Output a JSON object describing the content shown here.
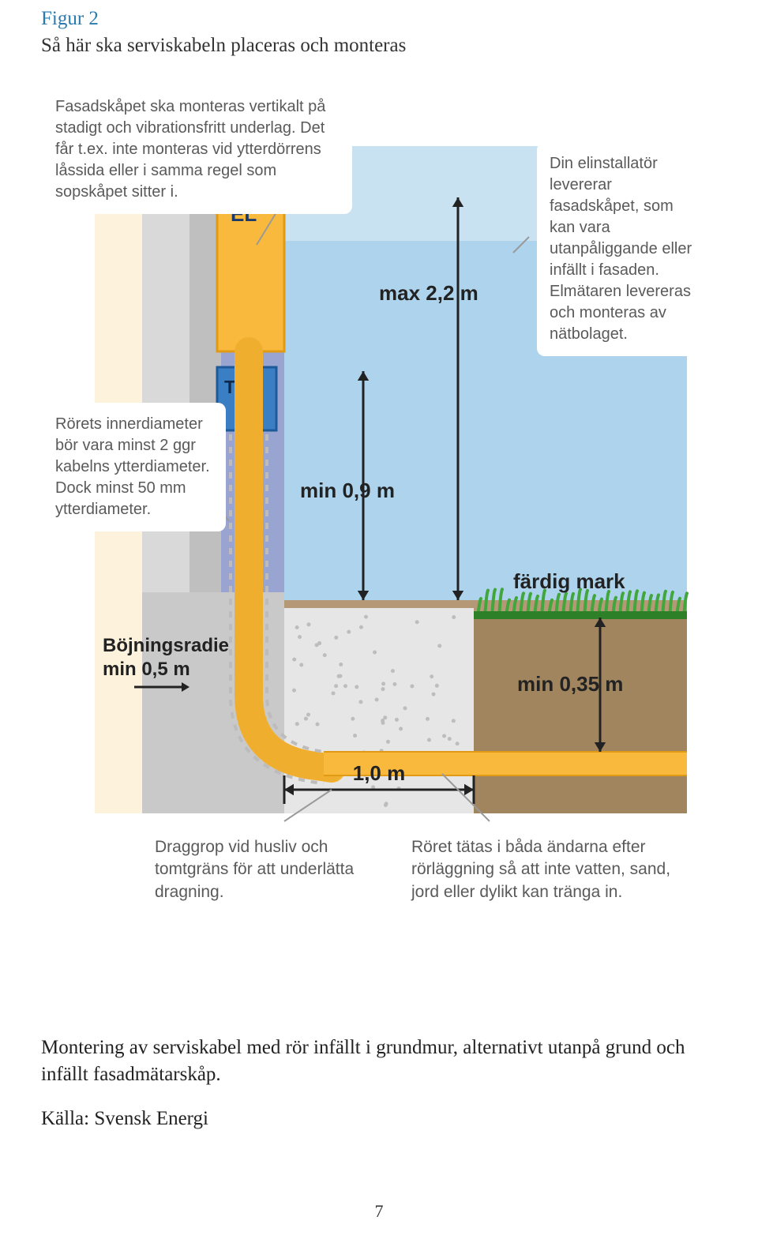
{
  "title": "Figur 2",
  "subtitle": "Så här ska serviskabeln placeras och monteras",
  "callouts": {
    "topLeft": "Fasadskåpet ska monteras vertikalt på stadigt och vibrationsfritt underlag. Det får t.ex. inte monteras vid ytterdörrens låssida eller i samma regel som sopskåpet sitter i.",
    "topRight": "Din elinstallatör levererar fasadskåpet, som kan vara utanpåliggande eller infällt i fasaden. Elmätaren levereras och monteras av nätbolaget.",
    "midLeft": "Rörets innerdiameter bör vara minst 2 ggr kabelns ytterdiameter. Dock minst 50 mm ytterdiameter.",
    "bottomLeft": "Draggrop vid husliv och tomtgräns för att underlätta dragning.",
    "bottomRight": "Röret tätas i båda ändarna efter rörläggning så att inte vatten, sand, jord eller dylikt kan tränga in."
  },
  "labels": {
    "el": "EL",
    "tele": "Tele",
    "max22": "max 2,2 m",
    "min09": "min 0,9 m",
    "fardigMark": "färdig mark",
    "bojning1": "Böjningsradie",
    "bojning2": "min 0,5 m",
    "oneM": "1,0 m",
    "min035": "min 0,35 m"
  },
  "footer1": "Montering av serviskabel med rör infällt i grundmur, alternativt utanpå grund och infällt fasadmätarskåp.",
  "footer2": "Källa: Svensk Energi",
  "pageNumber": "7",
  "colors": {
    "sky": "#aed3ec",
    "skyLight": "#d9ecf6",
    "wallLeft": "#d9d9d9",
    "wallLeft2": "#c9c9c9",
    "wallCream": "#fdf2dc",
    "yellow": "#f8b93d",
    "yellowDark": "#e19a13",
    "blueTele": "#3a7fc4",
    "ground": "#b59977",
    "groundDark": "#a0855f",
    "grass": "#41a63b",
    "grassDark": "#2d8028",
    "arrow": "#222222",
    "purpleWall": "#9aa4d1",
    "greyMid": "#bfbfbf",
    "gravel": "#e6e6e6"
  },
  "fontSizes": {
    "callout": 20,
    "calloutBottom": 21,
    "labelBig": 26,
    "labelMed": 24,
    "elLabel": 26,
    "teleLabel": 23
  }
}
